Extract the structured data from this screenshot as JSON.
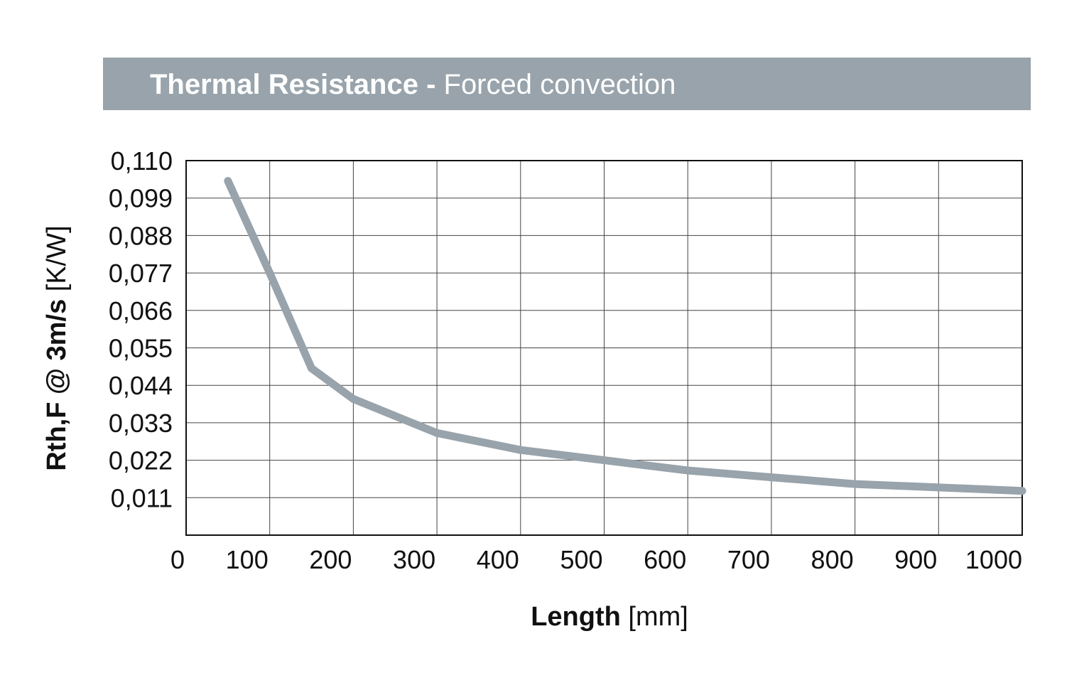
{
  "header": {
    "title_bold": "Thermal Resistance -",
    "title_rest": " Forced convection"
  },
  "chart_data": {
    "type": "line",
    "title": "Thermal Resistance - Forced convection",
    "xlabel_bold": "Length",
    "xlabel_unit": " [mm]",
    "ylabel_bold": "Rth,F @ 3m/s",
    "ylabel_unit": " [K/W]",
    "xlim": [
      0,
      1000
    ],
    "ylim": [
      0,
      0.11
    ],
    "x_ticks": [
      "0",
      "100",
      "200",
      "300",
      "400",
      "500",
      "600",
      "700",
      "800",
      "900",
      "1000"
    ],
    "y_ticks": [
      "0,011",
      "0,022",
      "0,033",
      "0,044",
      "0,055",
      "0,066",
      "0,077",
      "0,088",
      "0,099",
      "0,110"
    ],
    "grid": true,
    "line_color": "#98a3ab",
    "series": [
      {
        "x": [
          50,
          100,
          150,
          200,
          300,
          400,
          500,
          600,
          700,
          800,
          900,
          1000
        ],
        "y": [
          0.104,
          0.077,
          0.049,
          0.04,
          0.03,
          0.025,
          0.022,
          0.019,
          0.017,
          0.015,
          0.014,
          0.013
        ]
      }
    ]
  }
}
